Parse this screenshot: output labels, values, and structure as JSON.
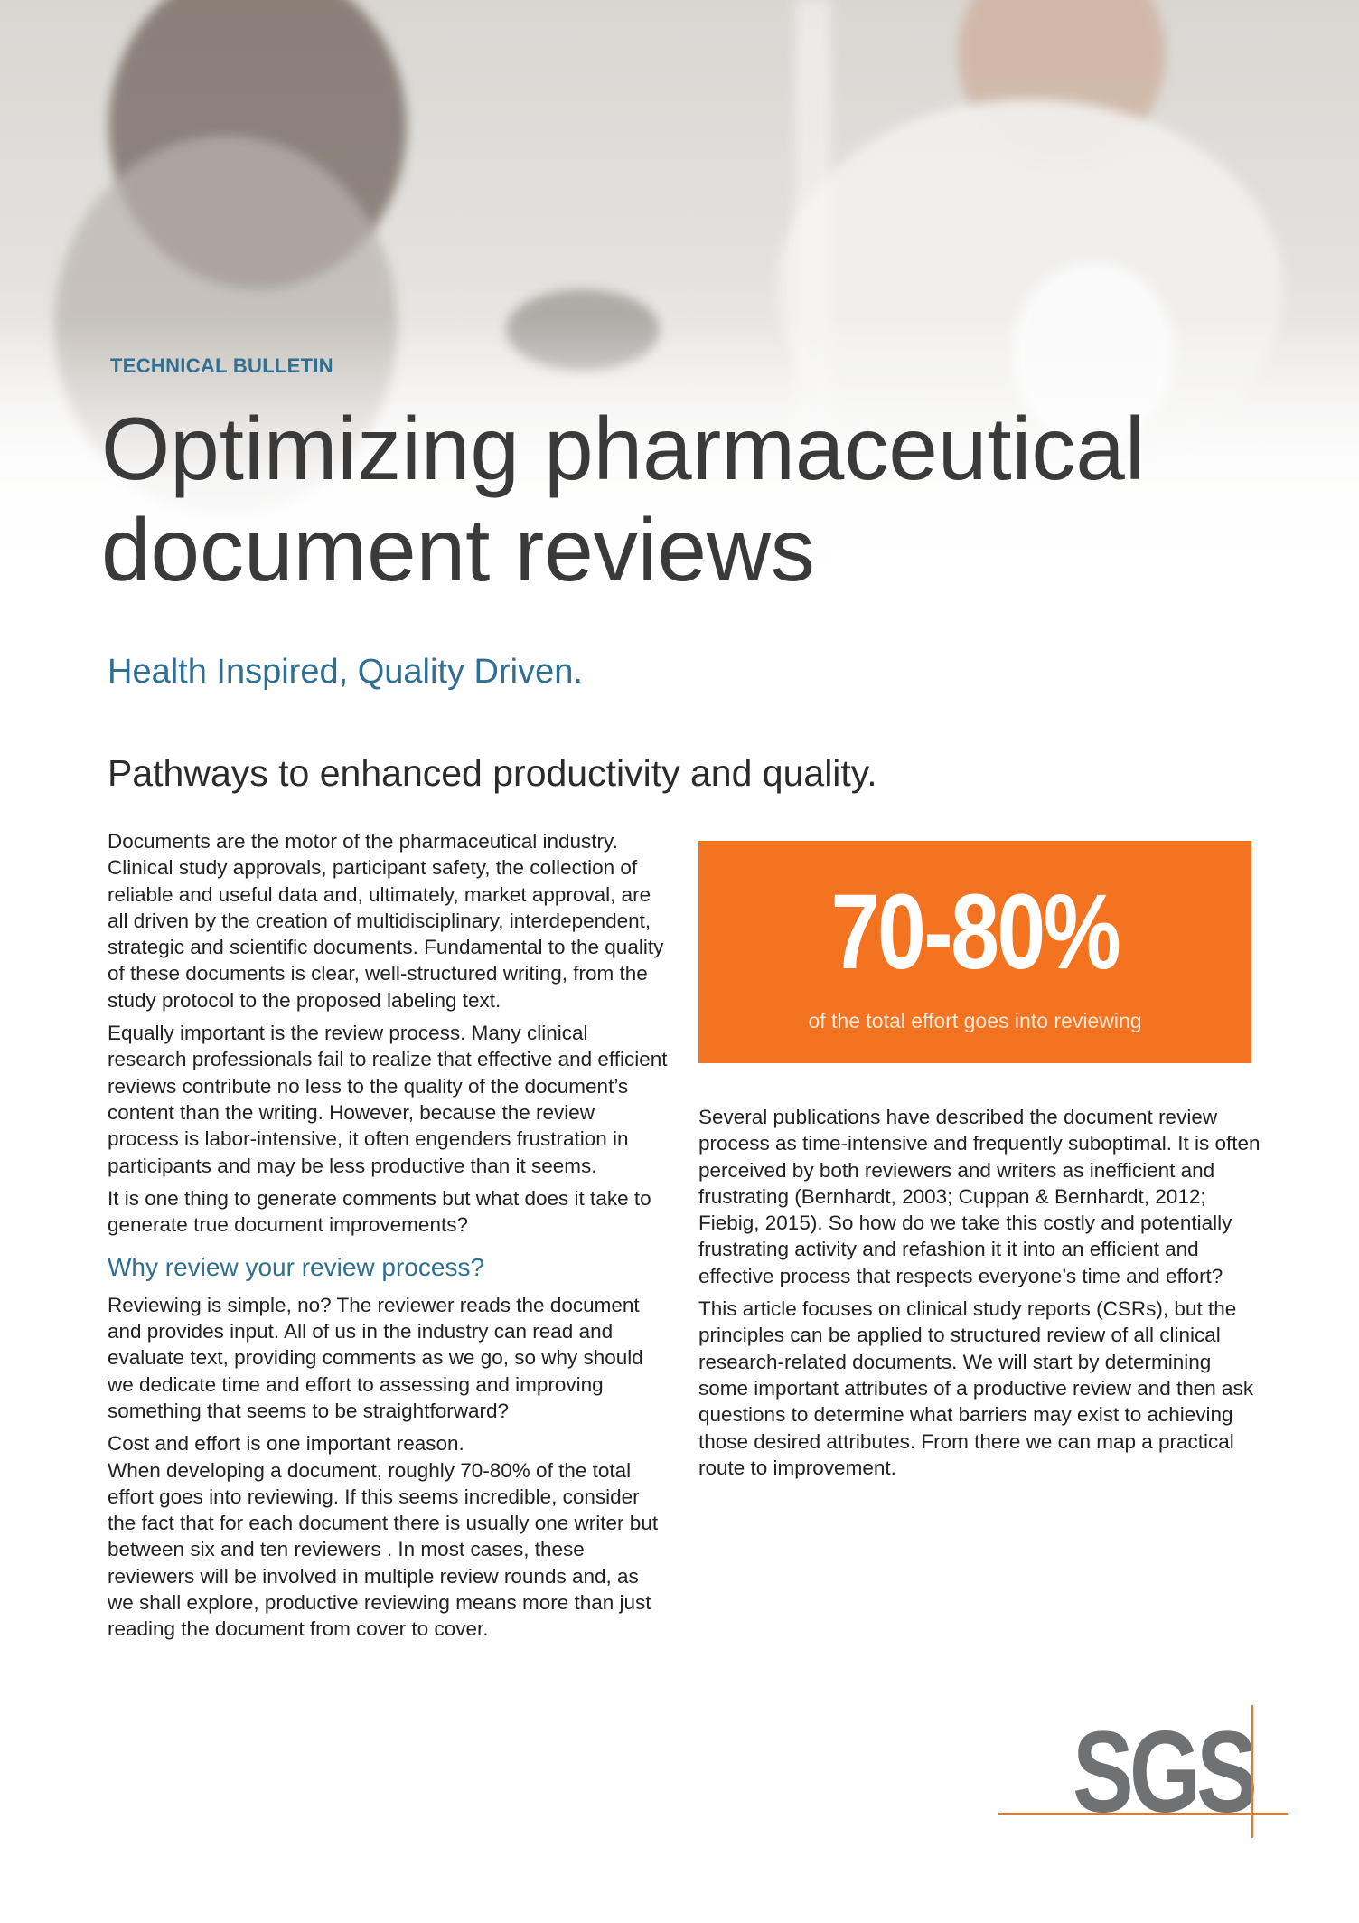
{
  "header": {
    "kicker": "TECHNICAL BULLETIN",
    "title_line1": "Optimizing pharmaceutical",
    "title_line2": "document reviews",
    "tagline": "Health Inspired, Quality Driven.",
    "subtitle": "Pathways to enhanced productivity and quality."
  },
  "left_column": {
    "paragraphs": [
      "Documents are the motor of the pharmaceutical industry. Clinical study approvals, participant safety, the collection of reliable and useful data and, ultimately, market approval, are all driven by the creation of multidisciplinary, interdependent, strategic and scientific documents. Fundamental to the quality of these documents is clear, well-structured writing, from the study protocol to the proposed labeling text.",
      "Equally important is the review process. Many clinical research professionals fail to realize that effective and efficient reviews contribute no less to the quality of the document’s content than the writing. However, because the review process is labor-intensive, it often engenders frustration in participants and may be less productive than it seems.",
      "It is one thing to generate comments but what does it take to generate true document improvements?"
    ],
    "heading": "Why review your review process?",
    "paragraphs2": [
      "Reviewing is simple, no? The reviewer reads the document and provides input. All of us in the industry can read and evaluate text, providing comments as we go, so why should we dedicate time and effort to assessing and improving something that seems to be straightforward?",
      "Cost and effort is one important reason.",
      "When developing a document, roughly 70-80% of the total effort goes into reviewing.  If this seems incredible, consider the fact that for each document there is usually one writer but between six and ten reviewers . In most cases, these reviewers will be involved in multiple review rounds and, as we shall explore, productive reviewing means more than just reading the document from cover to cover."
    ]
  },
  "stat_box": {
    "value": "70-80%",
    "caption": "of the total effort goes into reviewing",
    "color": "#f47320"
  },
  "right_column": {
    "paragraphs": [
      "Several publications have described the document review process as time-intensive and frequently suboptimal. It is often perceived by both reviewers and writers as inefficient and frustrating (Bernhardt, 2003; Cuppan & Bernhardt, 2012; Fiebig, 2015). So how do we take this costly and potentially frustrating activity and refashion it it into an efficient and effective process that respects everyone’s time and effort?",
      "This article focuses on clinical study reports (CSRs), but the principles can be applied to structured review of all clinical research-related documents. We will start by determining some important attributes of a productive review and then ask questions to determine what barriers may exist to achieving those desired attributes. From there we can map a practical route to improvement."
    ]
  },
  "logo": {
    "text": "SGS",
    "color": "#707173",
    "accent": "#f47320"
  },
  "colors": {
    "accent_blue": "#2f6f91",
    "orange": "#f47320"
  }
}
